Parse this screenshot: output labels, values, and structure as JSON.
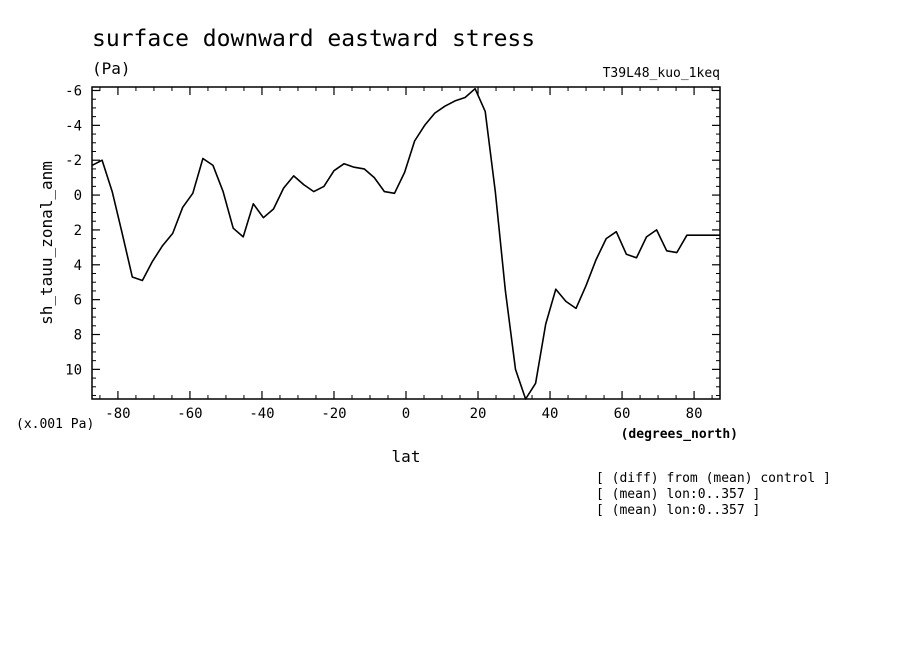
{
  "chart_data": {
    "type": "line",
    "title": "surface downward eastward stress",
    "units_label": "(Pa)",
    "experiment": "T39L48_kuo_1keq",
    "ylabel": "sh_tauu_zonal_anm",
    "xlabel": "lat",
    "x_units": "(degrees_north)",
    "y_scale_note": "(x.001 Pa)",
    "y_inverted": true,
    "xlim": [
      -87.2,
      87.2
    ],
    "ylim": [
      -6.2,
      11.7
    ],
    "x_ticks": [
      -80,
      -60,
      -40,
      -20,
      0,
      20,
      40,
      60,
      80
    ],
    "x_tick_labels": [
      "-80",
      "-60",
      "-40",
      "-20",
      "0",
      "20",
      "40",
      "60",
      "80"
    ],
    "y_ticks": [
      -6,
      -4,
      -2,
      0,
      2,
      4,
      6,
      8,
      10
    ],
    "y_tick_labels": [
      "-6",
      "-4",
      "-2",
      "0",
      "2",
      "4",
      "6",
      "8",
      "10"
    ],
    "grid": false,
    "notes": [
      "[ (diff) from (mean) control ]",
      "[ (mean) lon:0..357 ]",
      "[ (mean) lon:0..357 ]"
    ],
    "series": [
      {
        "x": [
          -87.2,
          -84.4,
          -81.6,
          -78.8,
          -76.0,
          -73.2,
          -70.4,
          -67.6,
          -64.8,
          -62.0,
          -59.2,
          -56.4,
          -53.6,
          -50.8,
          -48.0,
          -45.2,
          -42.4,
          -39.6,
          -36.8,
          -34.0,
          -31.2,
          -28.4,
          -25.6,
          -22.8,
          -20.0,
          -17.2,
          -14.4,
          -11.6,
          -8.8,
          -6.0,
          -3.2,
          -0.4,
          2.4,
          5.2,
          8.0,
          10.8,
          13.6,
          16.4,
          19.2,
          22.0,
          24.8,
          27.6,
          30.4,
          33.2,
          36.0,
          38.8,
          41.6,
          44.4,
          47.2,
          50.0,
          52.8,
          55.6,
          58.4,
          61.2,
          64.0,
          66.8,
          69.6,
          72.4,
          75.2,
          78.0,
          80.8,
          83.6,
          86.4,
          87.2
        ],
        "values": [
          -1.7,
          -2.0,
          -0.2,
          2.2,
          4.7,
          4.9,
          3.8,
          2.9,
          2.2,
          0.7,
          -0.1,
          -2.1,
          -1.7,
          -0.2,
          1.9,
          2.4,
          0.5,
          1.3,
          0.8,
          -0.4,
          -1.1,
          -0.6,
          -0.2,
          -0.5,
          -1.4,
          -1.8,
          -1.6,
          -1.5,
          -1.0,
          -0.2,
          -0.1,
          -1.3,
          -3.1,
          -4.0,
          -4.7,
          -5.1,
          -5.4,
          -5.6,
          -6.1,
          -4.8,
          -0.2,
          5.5,
          10.0,
          11.7,
          10.8,
          7.4,
          5.4,
          6.1,
          6.5,
          5.2,
          3.7,
          2.5,
          2.1,
          3.4,
          3.6,
          2.4,
          2.0,
          3.2,
          3.3,
          2.3,
          2.3,
          2.3,
          2.3,
          2.3
        ]
      }
    ]
  }
}
